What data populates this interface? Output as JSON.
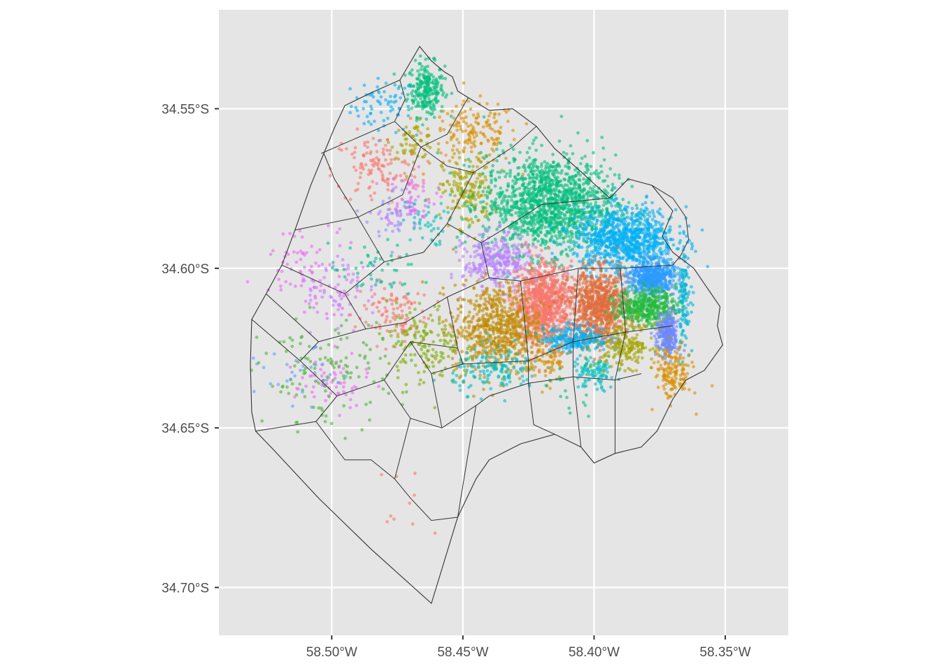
{
  "chart_data": {
    "type": "map",
    "title": "",
    "xlabel": "",
    "ylabel": "",
    "background": "#e5e5e5",
    "grid": true,
    "legend": "none",
    "x_range": [
      -58.543,
      -58.326
    ],
    "y_range": [
      -34.715,
      -34.519
    ],
    "x_ticks": [
      {
        "value": -58.5,
        "label": "58.50°W"
      },
      {
        "value": -58.45,
        "label": "58.45°W"
      },
      {
        "value": -58.4,
        "label": "58.40°W"
      },
      {
        "value": -58.35,
        "label": "58.35°W"
      }
    ],
    "y_ticks": [
      {
        "value": -34.55,
        "label": "34.55°S"
      },
      {
        "value": -34.6,
        "label": "34.60°S"
      },
      {
        "value": -34.65,
        "label": "34.65°S"
      },
      {
        "value": -34.7,
        "label": "34.70°S"
      }
    ],
    "city_boundary": [
      [
        -58.4665,
        -34.5305
      ],
      [
        -58.462,
        -34.535
      ],
      [
        -58.457,
        -34.5385
      ],
      [
        -58.454,
        -34.54
      ],
      [
        -58.452,
        -34.5445
      ],
      [
        -58.448,
        -34.5465
      ],
      [
        -58.44,
        -34.5505
      ],
      [
        -58.431,
        -34.55
      ],
      [
        -58.422,
        -34.5555
      ],
      [
        -58.415,
        -34.5625
      ],
      [
        -58.406,
        -34.569
      ],
      [
        -58.4,
        -34.5735
      ],
      [
        -58.394,
        -34.578
      ],
      [
        -58.387,
        -34.572
      ],
      [
        -58.378,
        -34.574
      ],
      [
        -58.37,
        -34.582
      ],
      [
        -58.374,
        -34.59
      ],
      [
        -58.37,
        -34.595
      ],
      [
        -58.362,
        -34.6
      ],
      [
        -58.357,
        -34.606
      ],
      [
        -58.352,
        -34.612
      ],
      [
        -58.353,
        -34.618
      ],
      [
        -58.351,
        -34.624
      ],
      [
        -58.358,
        -34.632
      ],
      [
        -58.365,
        -34.635
      ],
      [
        -58.37,
        -34.641
      ],
      [
        -58.376,
        -34.651
      ],
      [
        -58.382,
        -34.656
      ],
      [
        -58.392,
        -34.658
      ],
      [
        -58.4,
        -34.661
      ],
      [
        -58.405,
        -34.656
      ],
      [
        -58.415,
        -34.652
      ],
      [
        -58.428,
        -34.655
      ],
      [
        -58.44,
        -34.66
      ],
      [
        -58.445,
        -34.666
      ],
      [
        -58.452,
        -34.678
      ],
      [
        -58.462,
        -34.705
      ],
      [
        -58.485,
        -34.688
      ],
      [
        -58.505,
        -34.672
      ],
      [
        -58.522,
        -34.657
      ],
      [
        -58.529,
        -34.651
      ],
      [
        -58.5305,
        -34.645
      ],
      [
        -58.531,
        -34.63
      ],
      [
        -58.5305,
        -34.616
      ],
      [
        -58.525,
        -34.608
      ],
      [
        -58.519,
        -34.599
      ],
      [
        -58.514,
        -34.588
      ],
      [
        -58.508,
        -34.574
      ],
      [
        -58.503,
        -34.564
      ],
      [
        -58.499,
        -34.556
      ],
      [
        -58.495,
        -34.549
      ],
      [
        -58.485,
        -34.545
      ],
      [
        -58.474,
        -34.541
      ],
      [
        -58.4665,
        -34.5305
      ]
    ],
    "internal_borders": [
      [
        [
          -58.504,
          -34.564
        ],
        [
          -58.476,
          -34.554
        ],
        [
          -58.472,
          -34.547
        ],
        [
          -58.474,
          -34.541
        ]
      ],
      [
        [
          -58.476,
          -34.554
        ],
        [
          -58.466,
          -34.562
        ],
        [
          -58.456,
          -34.558
        ],
        [
          -58.448,
          -34.5465
        ]
      ],
      [
        [
          -58.466,
          -34.562
        ],
        [
          -58.456,
          -34.568
        ],
        [
          -58.446,
          -34.57
        ],
        [
          -58.431,
          -34.562
        ],
        [
          -58.422,
          -34.5555
        ]
      ],
      [
        [
          -58.49,
          -34.584
        ],
        [
          -58.473,
          -34.577
        ],
        [
          -58.466,
          -34.562
        ]
      ],
      [
        [
          -58.514,
          -34.588
        ],
        [
          -58.49,
          -34.584
        ],
        [
          -58.48,
          -34.598
        ],
        [
          -58.465,
          -34.595
        ],
        [
          -58.456,
          -34.586
        ],
        [
          -58.446,
          -34.57
        ]
      ],
      [
        [
          -58.456,
          -34.586
        ],
        [
          -58.443,
          -34.592
        ],
        [
          -58.435,
          -34.588
        ],
        [
          -58.42,
          -34.58
        ],
        [
          -58.394,
          -34.578
        ]
      ],
      [
        [
          -58.443,
          -34.592
        ],
        [
          -58.44,
          -34.603
        ],
        [
          -58.428,
          -34.604
        ],
        [
          -58.406,
          -34.6
        ],
        [
          -58.39,
          -34.6
        ],
        [
          -58.37,
          -34.599
        ]
      ],
      [
        [
          -58.519,
          -34.599
        ],
        [
          -58.495,
          -34.608
        ],
        [
          -58.48,
          -34.598
        ]
      ],
      [
        [
          -58.495,
          -34.608
        ],
        [
          -58.487,
          -34.619
        ],
        [
          -58.472,
          -34.617
        ],
        [
          -58.456,
          -34.609
        ],
        [
          -58.44,
          -34.603
        ]
      ],
      [
        [
          -58.456,
          -34.609
        ],
        [
          -58.452,
          -34.625
        ],
        [
          -58.45,
          -34.63
        ],
        [
          -58.425,
          -34.629
        ],
        [
          -58.408,
          -34.623
        ],
        [
          -58.388,
          -34.62
        ],
        [
          -58.37,
          -34.618
        ]
      ],
      [
        [
          -58.525,
          -34.608
        ],
        [
          -58.505,
          -34.623
        ],
        [
          -58.487,
          -34.619
        ]
      ],
      [
        [
          -58.5305,
          -34.616
        ],
        [
          -58.512,
          -34.629
        ],
        [
          -58.505,
          -34.623
        ]
      ],
      [
        [
          -58.512,
          -34.629
        ],
        [
          -58.498,
          -34.64
        ],
        [
          -58.48,
          -34.635
        ],
        [
          -58.47,
          -34.623
        ],
        [
          -58.452,
          -34.625
        ]
      ],
      [
        [
          -58.47,
          -34.623
        ],
        [
          -58.462,
          -34.633
        ],
        [
          -58.45,
          -34.63
        ]
      ],
      [
        [
          -58.529,
          -34.651
        ],
        [
          -58.506,
          -34.648
        ],
        [
          -58.498,
          -34.64
        ]
      ],
      [
        [
          -58.48,
          -34.635
        ],
        [
          -58.47,
          -34.647
        ],
        [
          -58.458,
          -34.65
        ],
        [
          -58.445,
          -34.643
        ],
        [
          -58.44,
          -34.64
        ],
        [
          -58.425,
          -34.636
        ],
        [
          -58.408,
          -34.634
        ],
        [
          -58.392,
          -34.635
        ],
        [
          -58.382,
          -34.633
        ]
      ],
      [
        [
          -58.462,
          -34.633
        ],
        [
          -58.458,
          -34.65
        ]
      ],
      [
        [
          -58.425,
          -34.629
        ],
        [
          -58.425,
          -34.636
        ],
        [
          -58.423,
          -34.649
        ],
        [
          -58.415,
          -34.652
        ]
      ],
      [
        [
          -58.408,
          -34.623
        ],
        [
          -58.408,
          -34.634
        ],
        [
          -58.405,
          -34.656
        ]
      ],
      [
        [
          -58.388,
          -34.62
        ],
        [
          -58.392,
          -34.635
        ],
        [
          -58.392,
          -34.658
        ]
      ],
      [
        [
          -58.406,
          -34.6
        ],
        [
          -58.408,
          -34.623
        ]
      ],
      [
        [
          -58.428,
          -34.604
        ],
        [
          -58.425,
          -34.629
        ]
      ],
      [
        [
          -58.506,
          -34.648
        ],
        [
          -58.495,
          -34.66
        ],
        [
          -58.485,
          -34.66
        ],
        [
          -58.476,
          -34.666
        ],
        [
          -58.47,
          -34.672
        ],
        [
          -58.462,
          -34.679
        ],
        [
          -58.452,
          -34.678
        ]
      ],
      [
        [
          -58.47,
          -34.647
        ],
        [
          -58.476,
          -34.666
        ]
      ],
      [
        [
          -58.445,
          -34.643
        ],
        [
          -58.452,
          -34.678
        ]
      ],
      [
        [
          -58.503,
          -34.564
        ],
        [
          -58.499,
          -34.572
        ],
        [
          -58.49,
          -34.584
        ]
      ],
      [
        [
          -58.39,
          -34.6
        ],
        [
          -58.388,
          -34.62
        ]
      ]
    ],
    "port_outline": [
      [
        -58.378,
        -34.574
      ],
      [
        -58.37,
        -34.578
      ],
      [
        -58.365,
        -34.584
      ],
      [
        -58.364,
        -34.591
      ],
      [
        -58.367,
        -34.596
      ],
      [
        -58.37,
        -34.599
      ]
    ],
    "series": [
      {
        "color": "#00b0f6",
        "points": 70,
        "center": [
          -58.48,
          -34.549
        ],
        "spread": [
          0.009,
          0.006
        ]
      },
      {
        "color": "#00bf7d",
        "points": 240,
        "center": [
          -58.464,
          -34.544
        ],
        "spread": [
          0.005,
          0.006
        ]
      },
      {
        "color": "#d89000",
        "points": 160,
        "center": [
          -58.446,
          -34.558
        ],
        "spread": [
          0.012,
          0.007
        ]
      },
      {
        "color": "#a3a500",
        "points": 60,
        "center": [
          -58.469,
          -34.56
        ],
        "spread": [
          0.006,
          0.004
        ]
      },
      {
        "color": "#f8766d",
        "points": 120,
        "center": [
          -58.483,
          -34.569
        ],
        "spread": [
          0.012,
          0.008
        ]
      },
      {
        "color": "#9590ff",
        "points": 50,
        "center": [
          -58.476,
          -34.583
        ],
        "spread": [
          0.007,
          0.006
        ]
      },
      {
        "color": "#e76bf3",
        "points": 60,
        "center": [
          -58.47,
          -34.578
        ],
        "spread": [
          0.007,
          0.006
        ]
      },
      {
        "color": "#00bfc4",
        "points": 40,
        "center": [
          -58.465,
          -34.586
        ],
        "spread": [
          0.006,
          0.005
        ]
      },
      {
        "color": "#a3a500",
        "points": 180,
        "center": [
          -58.448,
          -34.576
        ],
        "spread": [
          0.007,
          0.008
        ]
      },
      {
        "color": "#00bf7d",
        "points": 1400,
        "center": [
          -58.417,
          -34.58
        ],
        "spread": [
          0.018,
          0.011
        ]
      },
      {
        "color": "#00b0f6",
        "points": 900,
        "center": [
          -58.388,
          -34.591
        ],
        "spread": [
          0.014,
          0.007
        ]
      },
      {
        "color": "#b983ff",
        "points": 320,
        "center": [
          -58.437,
          -34.598
        ],
        "spread": [
          0.009,
          0.006
        ]
      },
      {
        "color": "#e76bf3",
        "points": 80,
        "center": [
          -58.507,
          -34.6
        ],
        "spread": [
          0.014,
          0.009
        ]
      },
      {
        "color": "#c77cff",
        "points": 60,
        "center": [
          -58.497,
          -34.607
        ],
        "spread": [
          0.012,
          0.008
        ]
      },
      {
        "color": "#f8766d",
        "points": 900,
        "center": [
          -58.419,
          -34.611
        ],
        "spread": [
          0.008,
          0.009
        ]
      },
      {
        "color": "#e06c3c",
        "points": 800,
        "center": [
          -58.398,
          -34.612
        ],
        "spread": [
          0.008,
          0.008
        ]
      },
      {
        "color": "#2b9bff",
        "points": 500,
        "center": [
          -58.378,
          -34.603
        ],
        "spread": [
          0.006,
          0.004
        ]
      },
      {
        "color": "#00b5d6",
        "points": 120,
        "center": [
          -58.366,
          -34.61
        ],
        "spread": [
          0.002,
          0.01
        ]
      },
      {
        "color": "#1fba3c",
        "points": 400,
        "center": [
          -58.38,
          -34.612
        ],
        "spread": [
          0.008,
          0.004
        ]
      },
      {
        "color": "#6e87ff",
        "points": 260,
        "center": [
          -58.372,
          -34.621
        ],
        "spread": [
          0.003,
          0.005
        ]
      },
      {
        "color": "#c08b00",
        "points": 700,
        "center": [
          -58.437,
          -34.619
        ],
        "spread": [
          0.012,
          0.01
        ]
      },
      {
        "color": "#f8766d",
        "points": 100,
        "center": [
          -58.477,
          -34.614
        ],
        "spread": [
          0.01,
          0.007
        ]
      },
      {
        "color": "#00c08b",
        "points": 50,
        "center": [
          -58.484,
          -34.601
        ],
        "spread": [
          0.012,
          0.006
        ]
      },
      {
        "color": "#00b0f6",
        "points": 240,
        "center": [
          -58.407,
          -34.622
        ],
        "spread": [
          0.009,
          0.003
        ]
      },
      {
        "color": "#7cae00",
        "points": 150,
        "center": [
          -58.465,
          -34.624
        ],
        "spread": [
          0.01,
          0.009
        ]
      },
      {
        "color": "#00bfc4",
        "points": 140,
        "center": [
          -58.437,
          -34.632
        ],
        "spread": [
          0.012,
          0.005
        ]
      },
      {
        "color": "#00bfc4",
        "points": 100,
        "center": [
          -58.4,
          -34.633
        ],
        "spread": [
          0.006,
          0.004
        ]
      },
      {
        "color": "#a3a500",
        "points": 200,
        "center": [
          -58.388,
          -34.624
        ],
        "spread": [
          0.008,
          0.005
        ]
      },
      {
        "color": "#d89000",
        "points": 150,
        "center": [
          -58.37,
          -34.633
        ],
        "spread": [
          0.005,
          0.006
        ]
      },
      {
        "color": "#d89000",
        "points": 80,
        "center": [
          -58.418,
          -34.629
        ],
        "spread": [
          0.006,
          0.005
        ]
      },
      {
        "color": "#e76bf3",
        "points": 60,
        "center": [
          -58.5,
          -34.636
        ],
        "spread": [
          0.01,
          0.006
        ]
      },
      {
        "color": "#4eb33a",
        "points": 120,
        "center": [
          -58.502,
          -34.633
        ],
        "spread": [
          0.018,
          0.012
        ]
      },
      {
        "color": "#619cff",
        "points": 30,
        "center": [
          -58.512,
          -34.634
        ],
        "spread": [
          0.012,
          0.006
        ]
      },
      {
        "color": "#f8766d",
        "points": 10,
        "center": [
          -58.47,
          -34.672
        ],
        "spread": [
          0.01,
          0.012
        ]
      },
      {
        "color": "#00bf7d",
        "points": 20,
        "center": [
          -58.41,
          -34.638
        ],
        "spread": [
          0.01,
          0.006
        ]
      }
    ]
  }
}
